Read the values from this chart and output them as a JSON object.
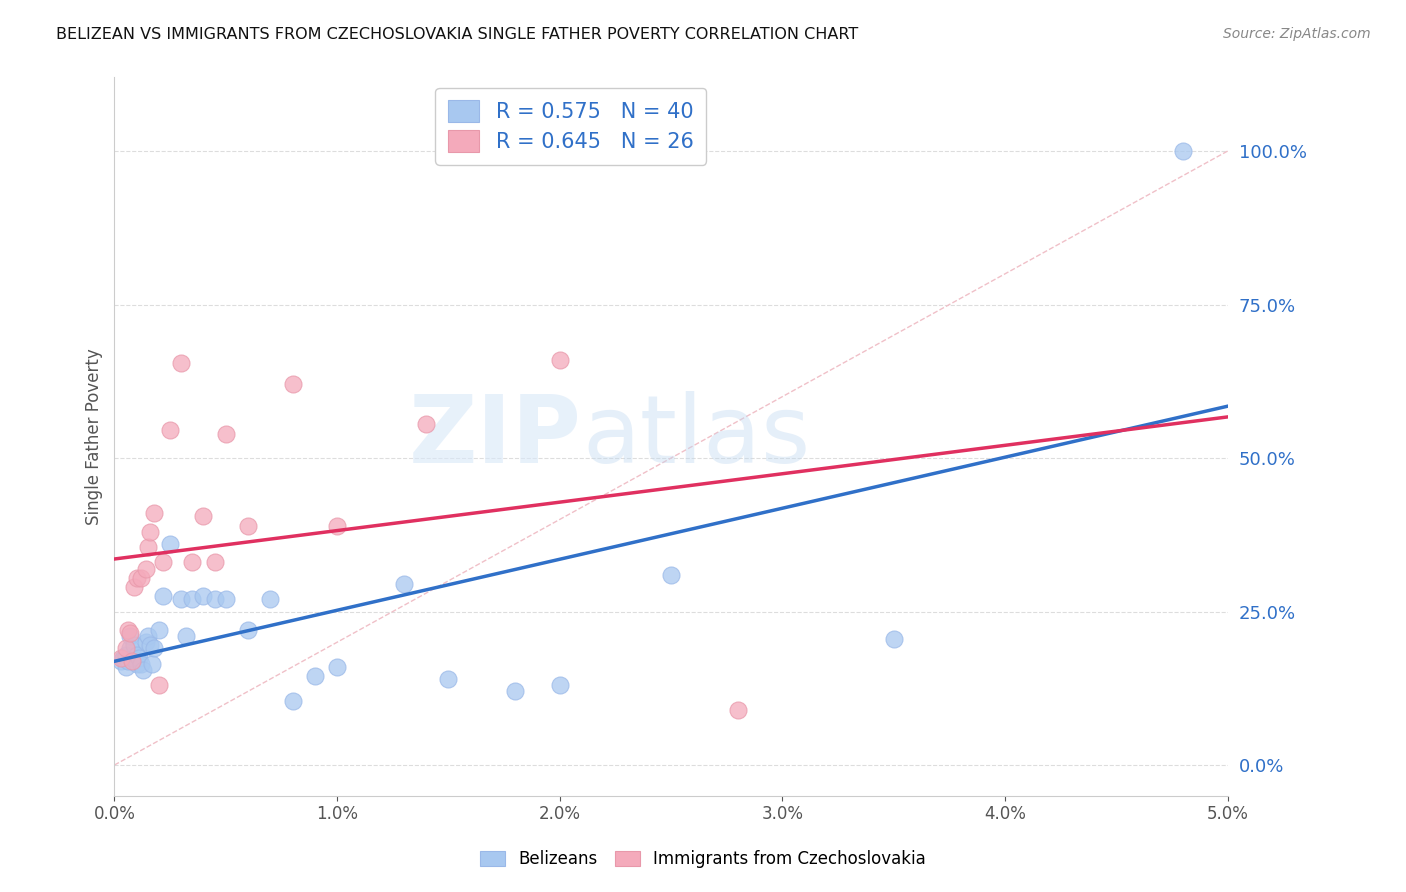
{
  "title": "BELIZEAN VS IMMIGRANTS FROM CZECHOSLOVAKIA SINGLE FATHER POVERTY CORRELATION CHART",
  "source": "Source: ZipAtlas.com",
  "ylabel": "Single Father Poverty",
  "xlim": [
    0.0,
    0.05
  ],
  "ylim": [
    -0.05,
    1.12
  ],
  "xticks": [
    0.0,
    0.01,
    0.02,
    0.03,
    0.04,
    0.05
  ],
  "yticks_right": [
    0.0,
    0.25,
    0.5,
    0.75,
    1.0
  ],
  "belizean_R": 0.575,
  "belizean_N": 40,
  "czech_R": 0.645,
  "czech_N": 26,
  "belizean_color": "#a8c8f0",
  "czech_color": "#f4aabb",
  "belizean_line_color": "#3070c8",
  "czech_line_color": "#e03060",
  "ref_line_color": "#f0c0c8",
  "watermark_zip": "ZIP",
  "watermark_atlas": "atlas",
  "legend_r_color": "#3070c8",
  "legend_n_color": "#3070c8",
  "belizean_x": [
    0.0003,
    0.0004,
    0.0005,
    0.0005,
    0.0006,
    0.0007,
    0.0007,
    0.0008,
    0.0009,
    0.001,
    0.001,
    0.0011,
    0.0012,
    0.0013,
    0.0014,
    0.0015,
    0.0016,
    0.0017,
    0.0018,
    0.002,
    0.0022,
    0.0025,
    0.003,
    0.0032,
    0.0035,
    0.004,
    0.0045,
    0.005,
    0.006,
    0.007,
    0.008,
    0.009,
    0.01,
    0.013,
    0.015,
    0.018,
    0.02,
    0.025,
    0.035,
    0.048
  ],
  "belizean_y": [
    0.17,
    0.175,
    0.16,
    0.18,
    0.17,
    0.21,
    0.19,
    0.175,
    0.195,
    0.18,
    0.165,
    0.175,
    0.165,
    0.155,
    0.2,
    0.21,
    0.195,
    0.165,
    0.19,
    0.22,
    0.275,
    0.36,
    0.27,
    0.21,
    0.27,
    0.275,
    0.27,
    0.27,
    0.22,
    0.27,
    0.105,
    0.145,
    0.16,
    0.295,
    0.14,
    0.12,
    0.13,
    0.31,
    0.205,
    1.0
  ],
  "czech_x": [
    0.0003,
    0.0005,
    0.0006,
    0.0007,
    0.0008,
    0.0009,
    0.001,
    0.0012,
    0.0014,
    0.0015,
    0.0016,
    0.0018,
    0.002,
    0.0022,
    0.0025,
    0.003,
    0.0035,
    0.004,
    0.0045,
    0.005,
    0.006,
    0.008,
    0.01,
    0.014,
    0.02,
    0.028
  ],
  "czech_y": [
    0.175,
    0.19,
    0.22,
    0.215,
    0.17,
    0.29,
    0.305,
    0.305,
    0.32,
    0.355,
    0.38,
    0.41,
    0.13,
    0.33,
    0.545,
    0.655,
    0.33,
    0.405,
    0.33,
    0.54,
    0.39,
    0.62,
    0.39,
    0.555,
    0.66,
    0.09
  ]
}
